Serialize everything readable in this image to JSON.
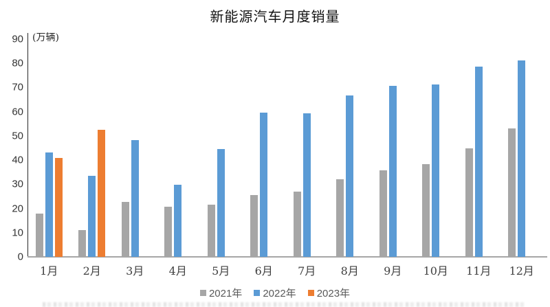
{
  "chart_data": {
    "type": "bar",
    "title": "新能源汽车月度销量",
    "ylabel": "(万辆)",
    "xlabel": "",
    "categories": [
      "1月",
      "2月",
      "3月",
      "4月",
      "5月",
      "6月",
      "7月",
      "8月",
      "9月",
      "10月",
      "11月",
      "12月"
    ],
    "series": [
      {
        "name": "2021年",
        "color": "#a6a6a6",
        "values": [
          17.9,
          11.0,
          22.6,
          20.6,
          21.7,
          25.6,
          27.1,
          32.1,
          35.7,
          38.3,
          45.0,
          53.1
        ]
      },
      {
        "name": "2022年",
        "color": "#5b9bd5",
        "values": [
          43.1,
          33.4,
          48.4,
          29.9,
          44.7,
          59.6,
          59.3,
          66.6,
          70.8,
          71.4,
          78.6,
          81.3
        ]
      },
      {
        "name": "2023年",
        "color": "#ed7d31",
        "values": [
          40.8,
          52.5,
          null,
          null,
          null,
          null,
          null,
          null,
          null,
          null,
          null,
          null
        ]
      }
    ],
    "ylim": [
      0,
      90
    ],
    "ytick_interval": 10,
    "grid": false,
    "legend_position": "bottom"
  }
}
